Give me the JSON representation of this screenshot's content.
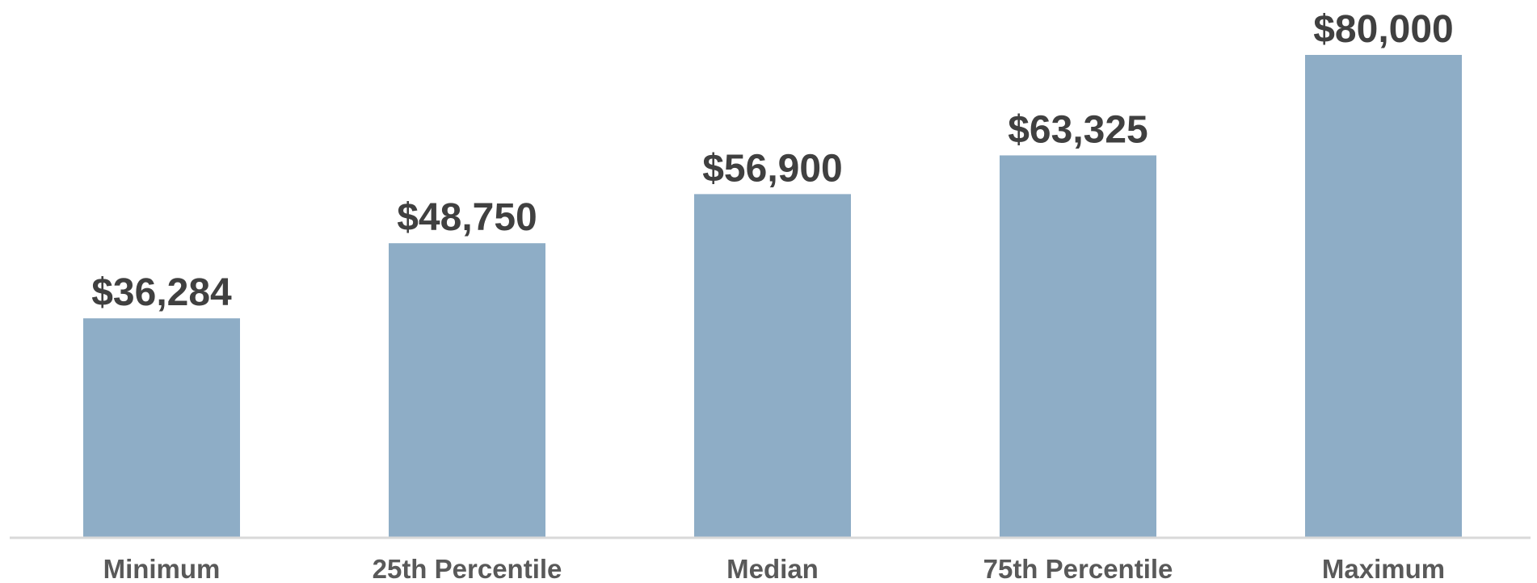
{
  "chart_data": {
    "type": "bar",
    "categories": [
      "Minimum",
      "25th Percentile",
      "Median",
      "75th Percentile",
      "Maximum"
    ],
    "values": [
      36284,
      48750,
      56900,
      63325,
      80000
    ],
    "value_labels": [
      "$36,284",
      "$48,750",
      "$56,900",
      "$63,325",
      "$80,000"
    ],
    "title": "",
    "xlabel": "",
    "ylabel": "",
    "ylim": [
      0,
      80000
    ],
    "grid": false,
    "legend": "none",
    "colors": {
      "bar": "#8EADC6",
      "axis": "#D9D9D9",
      "value_label": "#404040",
      "category_label": "#595959",
      "background": "#FFFFFF"
    }
  }
}
